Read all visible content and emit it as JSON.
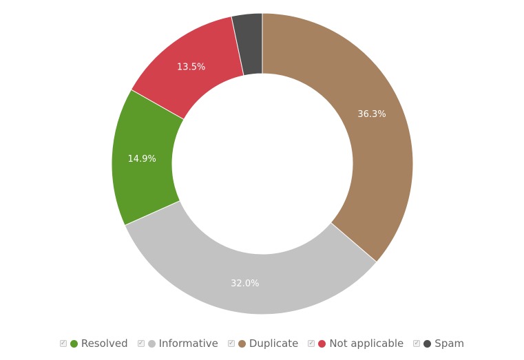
{
  "chart_data": {
    "type": "pie",
    "donut": true,
    "categories": [
      "Resolved",
      "Informative",
      "Duplicate",
      "Not applicable",
      "Spam"
    ],
    "values": [
      14.9,
      32.0,
      36.3,
      13.5,
      3.3
    ],
    "value_labels": [
      "14.9%",
      "32.0%",
      "36.3%",
      "13.5%",
      ""
    ],
    "colors": [
      "#5c9a2a",
      "#c2c2c2",
      "#a68260",
      "#d2414c",
      "#4f4f4f"
    ],
    "slice_order_clockwise_from_top": [
      "Duplicate",
      "Informative",
      "Resolved",
      "Not applicable",
      "Spam"
    ],
    "legend_position": "bottom"
  },
  "legend": {
    "check_glyph": "✓",
    "items": [
      {
        "label": "Resolved",
        "color": "#5c9a2a"
      },
      {
        "label": "Informative",
        "color": "#c2c2c2"
      },
      {
        "label": "Duplicate",
        "color": "#a68260"
      },
      {
        "label": "Not applicable",
        "color": "#d2414c"
      },
      {
        "label": "Spam",
        "color": "#4f4f4f"
      }
    ]
  }
}
